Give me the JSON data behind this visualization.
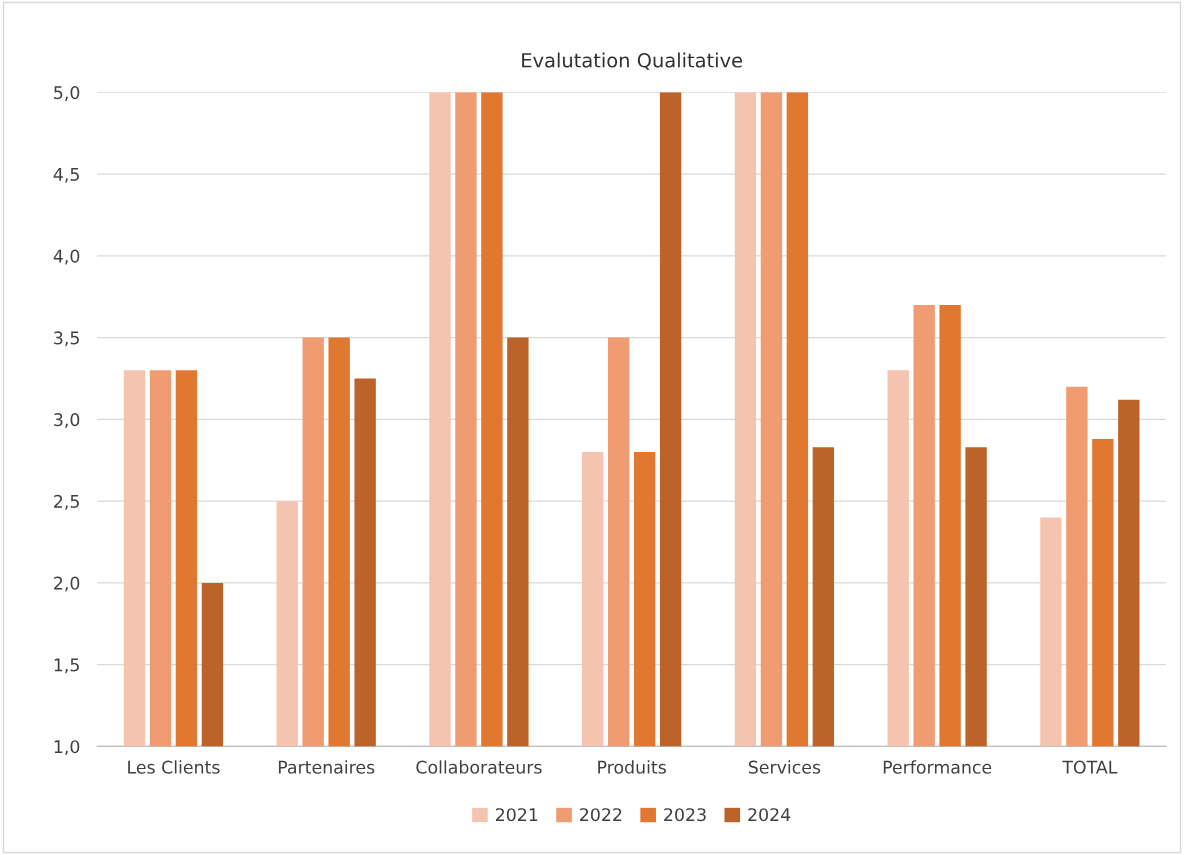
{
  "chart_data": {
    "type": "bar",
    "title": "Evalutation Qualitative",
    "categories": [
      "Les Clients",
      "Partenaires",
      "Collaborateurs",
      "Produits",
      "Services",
      "Performance",
      "TOTAL"
    ],
    "series": [
      {
        "name": "2021",
        "color": "#f5c4b0",
        "values": [
          3.3,
          2.5,
          5.0,
          2.8,
          5.0,
          3.3,
          2.4
        ]
      },
      {
        "name": "2022",
        "color": "#f09c72",
        "values": [
          3.3,
          3.5,
          5.0,
          3.5,
          5.0,
          3.7,
          3.2
        ]
      },
      {
        "name": "2023",
        "color": "#e07832",
        "values": [
          3.3,
          3.5,
          5.0,
          2.8,
          5.0,
          3.7,
          2.88
        ]
      },
      {
        "name": "2024",
        "color": "#bb6328",
        "values": [
          2.0,
          3.25,
          3.5,
          5.0,
          2.83,
          2.83,
          3.12
        ]
      }
    ],
    "ylim": [
      1.0,
      5.0
    ],
    "yticks": [
      {
        "value": 1.0,
        "label": "1,0"
      },
      {
        "value": 1.5,
        "label": "1,5"
      },
      {
        "value": 2.0,
        "label": "2,0"
      },
      {
        "value": 2.5,
        "label": "2,5"
      },
      {
        "value": 3.0,
        "label": "3,0"
      },
      {
        "value": 3.5,
        "label": "3,5"
      },
      {
        "value": 4.0,
        "label": "4,0"
      },
      {
        "value": 4.5,
        "label": "4,5"
      },
      {
        "value": 5.0,
        "label": "5,0"
      }
    ],
    "grid": "y",
    "legend": "bottom"
  }
}
